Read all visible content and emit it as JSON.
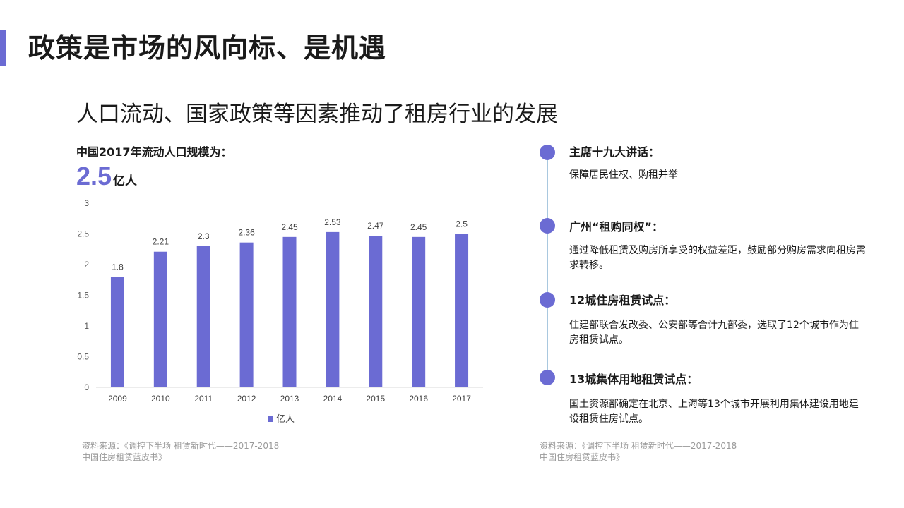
{
  "slide": {
    "title": "政策是市场的风向标、是机遇",
    "subtitle": "人口流动、国家政策等因素推动了租房行业的发展"
  },
  "stat": {
    "label": "中国2017年流动人口规模为：",
    "value": "2.5",
    "unit": "亿人"
  },
  "colors": {
    "accent": "#6b6bd3",
    "timeline_line": "#a9c8df"
  },
  "chart_data": {
    "type": "bar",
    "categories": [
      "2009",
      "2010",
      "2011",
      "2012",
      "2013",
      "2014",
      "2015",
      "2016",
      "2017"
    ],
    "series": [
      {
        "name": "亿人",
        "values": [
          1.8,
          2.21,
          2.3,
          2.36,
          2.45,
          2.53,
          2.47,
          2.45,
          2.5
        ]
      }
    ],
    "value_labels": [
      "1.8",
      "2.21",
      "2.3",
      "2.36",
      "2.45",
      "2.53",
      "2.47",
      "2.45",
      "2.5"
    ],
    "ylim": [
      0,
      3
    ],
    "yticks": [
      "0",
      "0.5",
      "1",
      "1.5",
      "2",
      "2.5",
      "3"
    ],
    "grid": false,
    "legend": "bottom-center",
    "color": "#6b6bd3"
  },
  "sources": {
    "left": [
      "资料来源：《调控下半场  租赁新时代——2017-2018",
      "中国住房租赁蓝皮书》"
    ],
    "right": [
      "资料来源：《调控下半场  租赁新时代——2017-2018",
      "中国住房租赁蓝皮书》"
    ]
  },
  "timeline": [
    {
      "heading": "主席十九大讲话：",
      "body": "保障居民住权、购租并举"
    },
    {
      "heading": "广州“租购同权”：",
      "body": "通过降低租赁及购房所享受的权益差距，鼓励部分购房需求向租房需求转移。"
    },
    {
      "heading": "12城住房租赁试点：",
      "body": "住建部联合发改委、公安部等合计九部委，选取了12个城市作为住房租赁试点。"
    },
    {
      "heading": "13城集体用地租赁试点：",
      "body": "国土资源部确定在北京、上海等13个城市开展利用集体建设用地建设租赁住房试点。"
    }
  ]
}
